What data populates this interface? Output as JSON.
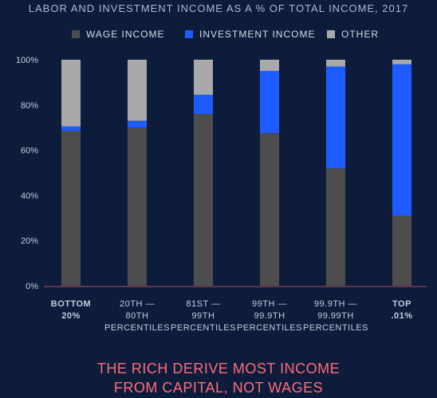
{
  "caption": {
    "line1": "THE RICH DERIVE MOST INCOME",
    "line2": "FROM CAPITAL, NOT WAGES"
  },
  "colors": {
    "background": "#0e1c3c",
    "wage": "#4d4d4d",
    "investment": "#1f5cff",
    "other": "#a9a9a9",
    "axis": "#b04a5a",
    "caption": "#ff6b78"
  },
  "chart_data": {
    "type": "bar",
    "stacked": true,
    "title": "LABOR AND INVESTMENT INCOME AS A % OF TOTAL INCOME, 2017",
    "categories": [
      [
        "BOTTOM",
        "20%"
      ],
      [
        "20TH —",
        "80TH",
        "PERCENTILES"
      ],
      [
        "81ST —",
        "99TH",
        "PERCENTILES"
      ],
      [
        "99TH —",
        "99.9TH",
        "PERCENTILES"
      ],
      [
        "99.9TH —",
        "99.99TH",
        "PERCENTILES"
      ],
      [
        "TOP",
        ".01%"
      ]
    ],
    "bold_categories": [
      0,
      5
    ],
    "series": [
      {
        "name": "WAGE INCOME",
        "values": [
          68.5,
          70,
          76,
          67.5,
          52,
          31
        ]
      },
      {
        "name": "INVESTMENT INCOME",
        "values": [
          2,
          3,
          8.5,
          27.5,
          45,
          67
        ]
      },
      {
        "name": "OTHER",
        "values": [
          29.5,
          27,
          15.5,
          5,
          3,
          2
        ]
      }
    ],
    "ylim": [
      0,
      100
    ],
    "yticks": [
      "0%",
      "20%",
      "40%",
      "60%",
      "80%",
      "100%"
    ],
    "legend": "top"
  }
}
